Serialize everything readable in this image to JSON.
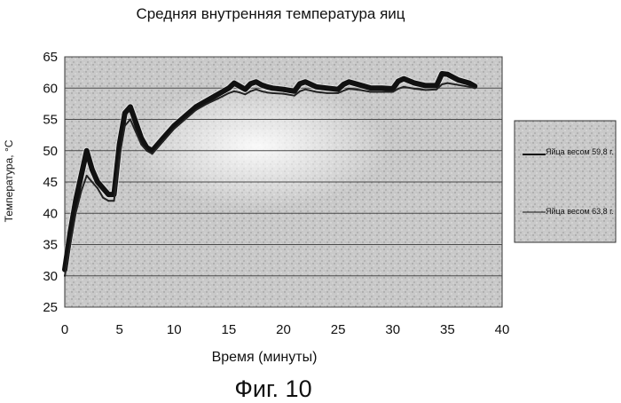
{
  "chart_data": {
    "type": "line",
    "title": "Средняя внутренняя температура яиц",
    "xlabel": "Время (минуты)",
    "ylabel": "Температура, °С",
    "caption": "Фиг. 10",
    "xlim": [
      0,
      40
    ],
    "ylim": [
      25,
      65
    ],
    "xticks": [
      "0",
      "5",
      "10",
      "15",
      "20",
      "25",
      "30",
      "35",
      "40"
    ],
    "yticks": [
      "25",
      "30",
      "35",
      "40",
      "45",
      "50",
      "55",
      "60",
      "65"
    ],
    "grid": true,
    "legend_position": "right",
    "series": [
      {
        "name": "Яйца весом 59,8 г.",
        "line_style": "thick dark band",
        "x": [
          0,
          0.5,
          1,
          1.5,
          2,
          2.5,
          3,
          3.5,
          4,
          4.5,
          5,
          5.5,
          6,
          6.5,
          7,
          7.5,
          8,
          9,
          10,
          11,
          12,
          13,
          14,
          15,
          15.5,
          16,
          16.5,
          17,
          17.5,
          18,
          18.5,
          19,
          20,
          21,
          21.5,
          22,
          23,
          24,
          25,
          25.5,
          26,
          27,
          28,
          29,
          30,
          30.5,
          31,
          32,
          33,
          34,
          34.5,
          35,
          36,
          37,
          37.5
        ],
        "y": [
          31,
          37,
          42,
          46,
          50,
          47,
          45,
          44,
          43,
          43,
          51,
          56,
          57,
          54.5,
          52,
          50.5,
          50,
          52,
          54,
          55.5,
          57,
          58,
          59,
          60,
          60.8,
          60.3,
          59.8,
          60.7,
          61,
          60.5,
          60.2,
          60,
          59.8,
          59.5,
          60.7,
          61,
          60.2,
          60,
          59.8,
          60.6,
          61,
          60.5,
          60,
          60,
          59.9,
          61.1,
          61.5,
          60.8,
          60.4,
          60.4,
          62.3,
          62.2,
          61.3,
          60.8,
          60.3
        ]
      },
      {
        "name": "Яйца весом 63,8 г.",
        "line_style": "thin line",
        "x": [
          0,
          0.5,
          1,
          1.5,
          2,
          2.5,
          3,
          3.5,
          4,
          4.5,
          5,
          5.5,
          6,
          6.5,
          7,
          7.5,
          8,
          9,
          10,
          11,
          12,
          13,
          14,
          15,
          15.5,
          16,
          16.5,
          17,
          17.5,
          18,
          18.5,
          19,
          20,
          21,
          21.5,
          22,
          23,
          24,
          25,
          25.5,
          26,
          27,
          28,
          29,
          30,
          30.5,
          31,
          32,
          33,
          34,
          34.5,
          35,
          36,
          37,
          37.5
        ],
        "y": [
          30,
          35,
          40,
          43.5,
          46,
          45,
          44,
          42.5,
          42,
          42,
          49,
          54,
          55,
          53,
          51,
          50,
          49.5,
          51.5,
          53.5,
          55,
          56.5,
          57.5,
          58.3,
          59.2,
          59.5,
          59.3,
          59,
          59.5,
          59.8,
          59.5,
          59.3,
          59.2,
          59.1,
          58.8,
          59.5,
          59.8,
          59.4,
          59.2,
          59.2,
          59.6,
          59.9,
          59.7,
          59.4,
          59.4,
          59.4,
          59.9,
          60.2,
          59.9,
          59.7,
          59.8,
          60.6,
          60.8,
          60.5,
          60.2,
          60
        ]
      }
    ]
  }
}
